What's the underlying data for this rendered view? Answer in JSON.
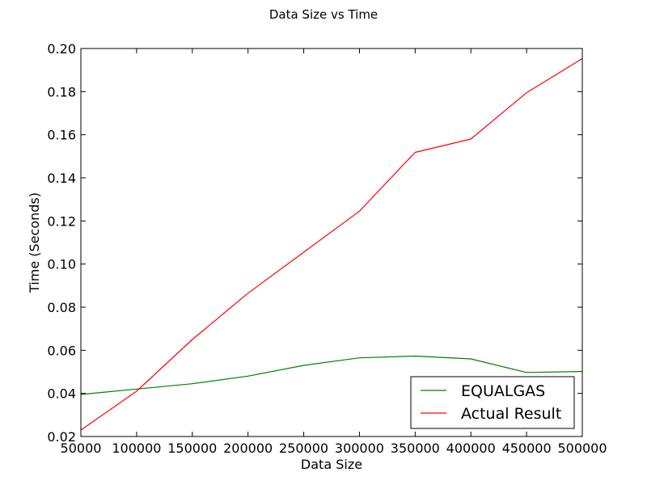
{
  "chart_data": {
    "type": "line",
    "title": "Data Size vs Time",
    "xlabel": "Data Size",
    "ylabel": "Time (Seconds)",
    "xlim": [
      50000,
      500000
    ],
    "ylim": [
      0.02,
      0.2
    ],
    "xticks": [
      50000,
      100000,
      150000,
      200000,
      250000,
      300000,
      350000,
      400000,
      450000,
      500000
    ],
    "yticks": [
      0.02,
      0.04,
      0.06,
      0.08,
      0.1,
      0.12,
      0.14,
      0.16,
      0.18,
      0.2
    ],
    "xtick_labels": [
      "50000",
      "100000",
      "150000",
      "200000",
      "250000",
      "300000",
      "350000",
      "400000",
      "450000",
      "500000"
    ],
    "ytick_labels": [
      "0.02",
      "0.04",
      "0.06",
      "0.08",
      "0.10",
      "0.12",
      "0.14",
      "0.16",
      "0.18",
      "0.20"
    ],
    "grid": false,
    "legend_position": "bottom-right",
    "x": [
      50000,
      100000,
      150000,
      200000,
      250000,
      300000,
      350000,
      400000,
      450000,
      500000
    ],
    "series": [
      {
        "name": "EQUALGAS",
        "color": "#008000",
        "values": [
          0.0395,
          0.042,
          0.0445,
          0.048,
          0.053,
          0.0565,
          0.0573,
          0.056,
          0.0497,
          0.0502
        ]
      },
      {
        "name": "Actual Result",
        "color": "#ff0000",
        "values": [
          0.023,
          0.041,
          0.065,
          0.0865,
          0.1055,
          0.1245,
          0.1518,
          0.158,
          0.1795,
          0.1953
        ]
      }
    ]
  }
}
